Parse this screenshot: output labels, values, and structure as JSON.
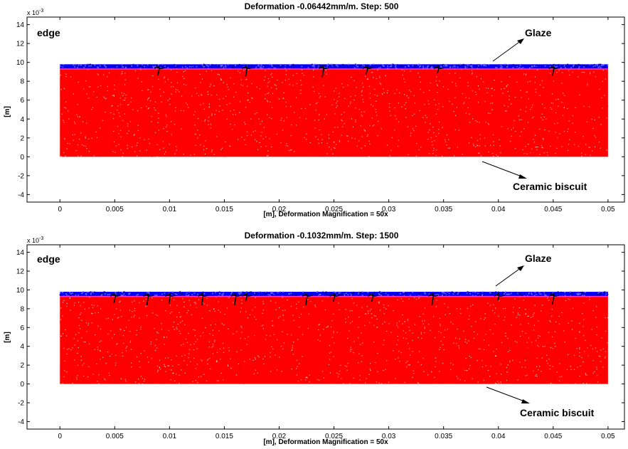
{
  "chart_data": [
    {
      "type": "scatter",
      "title": "Deformation -0.06442mm/m. Step: 500",
      "xlabel": "[m], Deformation Magnification = 50x",
      "ylabel": "[m]",
      "y_exponent": "x 10",
      "y_exponent_power": "-3",
      "xlim": [
        -0.003,
        0.0515
      ],
      "ylim": [
        -0.0048,
        0.0148
      ],
      "xticks": [
        "0",
        "0.005",
        "0.01",
        "0.015",
        "0.02",
        "0.025",
        "0.03",
        "0.035",
        "0.04",
        "0.045",
        "0.05"
      ],
      "yticks": [
        "-4",
        "-2",
        "0",
        "2",
        "4",
        "6",
        "8",
        "10",
        "12",
        "14"
      ],
      "grid": false,
      "series": [
        {
          "name": "Ceramic biscuit",
          "color": "#ff0000",
          "x_range": [
            0.0,
            0.05
          ],
          "y_range": [
            0.0,
            0.0093
          ]
        },
        {
          "name": "Glaze",
          "color": "#0000ff",
          "x_range": [
            0.0,
            0.05
          ],
          "y_range": [
            0.0093,
            0.0098
          ]
        }
      ],
      "cracks_x": [
        0.009,
        0.017,
        0.024,
        0.028,
        0.0345,
        0.045
      ],
      "annotations": {
        "edge": "edge",
        "glaze": "Glaze",
        "biscuit": "Ceramic biscuit"
      }
    },
    {
      "type": "scatter",
      "title": "Deformation -0.1032mm/m. Step: 1500",
      "xlabel": "[m], Deformation Magnification = 50x",
      "ylabel": "[m]",
      "y_exponent": "x 10",
      "y_exponent_power": "-3",
      "xlim": [
        -0.003,
        0.0515
      ],
      "ylim": [
        -0.0048,
        0.0148
      ],
      "xticks": [
        "0",
        "0.005",
        "0.01",
        "0.015",
        "0.02",
        "0.025",
        "0.03",
        "0.035",
        "0.04",
        "0.045",
        "0.05"
      ],
      "yticks": [
        "-4",
        "-2",
        "0",
        "2",
        "4",
        "6",
        "8",
        "10",
        "12",
        "14"
      ],
      "grid": false,
      "series": [
        {
          "name": "Ceramic biscuit",
          "color": "#ff0000",
          "x_range": [
            0.0,
            0.05
          ],
          "y_range": [
            0.0,
            0.0093
          ]
        },
        {
          "name": "Glaze",
          "color": "#0000ff",
          "x_range": [
            0.0,
            0.05
          ],
          "y_range": [
            0.0093,
            0.0098
          ]
        }
      ],
      "cracks_x": [
        0.005,
        0.008,
        0.01,
        0.013,
        0.016,
        0.017,
        0.0225,
        0.025,
        0.0285,
        0.034,
        0.04,
        0.045
      ],
      "annotations": {
        "edge": "edge",
        "glaze": "Glaze",
        "biscuit": "Ceramic biscuit"
      }
    }
  ]
}
